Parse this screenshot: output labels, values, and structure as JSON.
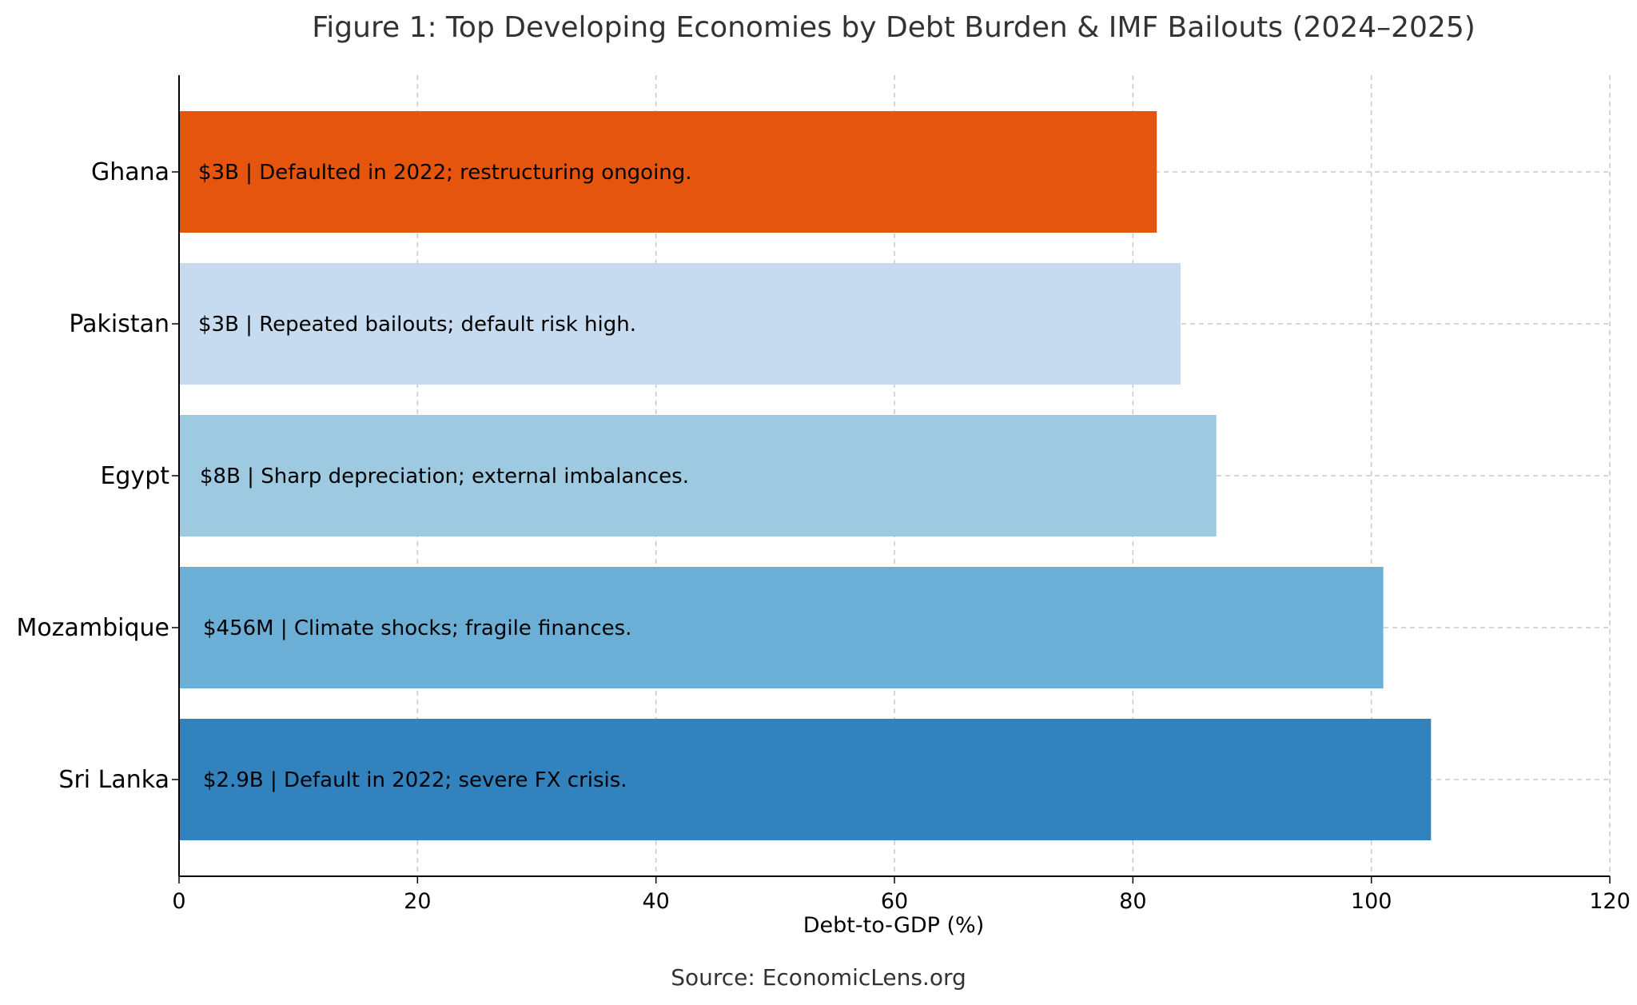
{
  "chart_data": {
    "type": "bar",
    "orientation": "horizontal",
    "title": "Figure 1: Top Developing Economies by Debt Burden & IMF Bailouts (2024–2025)",
    "xlabel": "Debt-to-GDP (%)",
    "ylabel": "",
    "xlim": [
      0,
      120
    ],
    "xticks": [
      0,
      20,
      40,
      60,
      80,
      100,
      120
    ],
    "grid": true,
    "source": "Source: EconomicLens.org",
    "categories": [
      "Ghana",
      "Pakistan",
      "Egypt",
      "Mozambique",
      "Sri Lanka"
    ],
    "values": [
      82,
      84,
      87,
      101,
      105
    ],
    "annotations": [
      "$3B | Defaulted in 2022; restructuring ongoing.",
      "$3B | Repeated bailouts; default risk high.",
      "$8B | Sharp depreciation; external imbalances.",
      "$456M | Climate shocks; fragile finances.",
      "$2.9B | Default in 2022; severe FX crisis."
    ],
    "colors": [
      "#e6550d",
      "#c6dbef",
      "#9ecae1",
      "#6baed6",
      "#3182bd"
    ]
  }
}
